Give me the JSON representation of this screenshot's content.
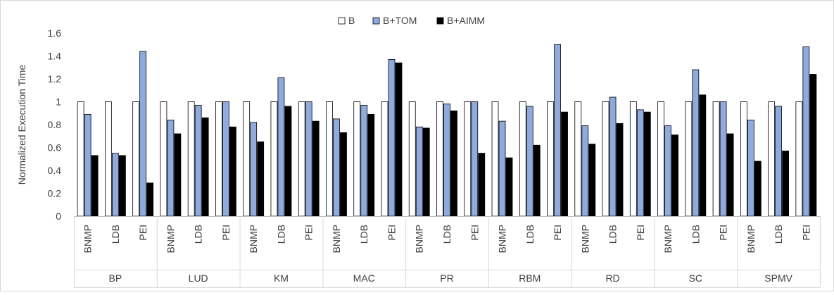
{
  "chart_data": {
    "type": "bar",
    "title": "",
    "xlabel": "",
    "ylabel": "Normalized Execution Time",
    "ylim": [
      0,
      1.6
    ],
    "yticks": [
      "0",
      "0.2",
      "0.4",
      "0.6",
      "0.8",
      "1",
      "1.2",
      "1.4",
      "1.6"
    ],
    "grid": false,
    "legend_position": "top-center",
    "categories_inner": [
      "BNMP",
      "LDB",
      "PEI"
    ],
    "groups": [
      "BP",
      "LUD",
      "KM",
      "MAC",
      "PR",
      "RBM",
      "RD",
      "SC",
      "SPMV"
    ],
    "series": [
      {
        "name": "B",
        "color": "#ffffff",
        "values": [
          [
            1,
            1,
            1
          ],
          [
            1,
            1,
            1
          ],
          [
            1,
            1,
            1
          ],
          [
            1,
            1,
            1
          ],
          [
            1,
            1,
            1
          ],
          [
            1,
            1,
            1
          ],
          [
            1,
            1,
            1
          ],
          [
            1,
            1,
            1
          ],
          [
            1,
            1,
            1
          ]
        ]
      },
      {
        "name": "B+TOM",
        "color": "#8faadc",
        "values": [
          [
            0.89,
            0.55,
            1.44
          ],
          [
            0.84,
            0.97,
            1.0
          ],
          [
            0.82,
            1.21,
            1.0
          ],
          [
            0.85,
            0.97,
            1.37
          ],
          [
            0.78,
            0.98,
            1.0
          ],
          [
            0.83,
            0.96,
            1.5
          ],
          [
            0.79,
            1.04,
            0.93
          ],
          [
            0.79,
            1.28,
            1.0
          ],
          [
            0.84,
            0.96,
            1.48
          ]
        ]
      },
      {
        "name": "B+AIMM",
        "color": "#000000",
        "values": [
          [
            0.53,
            0.53,
            0.29
          ],
          [
            0.72,
            0.86,
            0.78
          ],
          [
            0.65,
            0.96,
            0.83
          ],
          [
            0.73,
            0.89,
            1.34
          ],
          [
            0.77,
            0.92,
            0.55
          ],
          [
            0.51,
            0.62,
            0.91
          ],
          [
            0.63,
            0.81,
            0.91
          ],
          [
            0.71,
            1.06,
            0.72
          ],
          [
            0.48,
            0.57,
            1.24
          ]
        ]
      }
    ]
  }
}
